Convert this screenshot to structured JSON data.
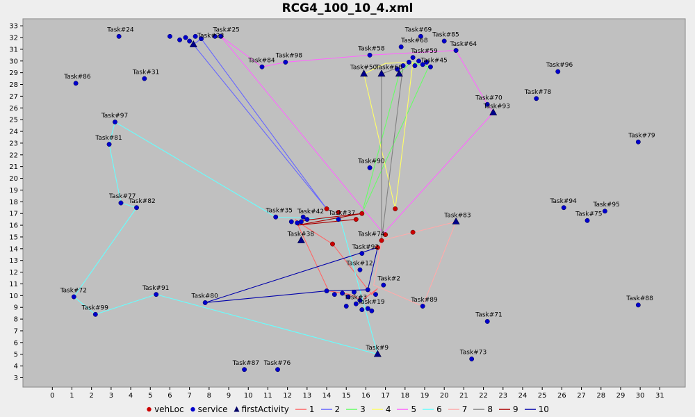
{
  "chart_data": {
    "type": "scatter",
    "title": "RCG4_100_10_4.xml",
    "xlabel": "",
    "ylabel": "",
    "xlim": [
      -1.5,
      32.3
    ],
    "ylim": [
      2.2,
      33.6
    ],
    "xticks": [
      0,
      1,
      2,
      3,
      4,
      5,
      6,
      7,
      8,
      9,
      10,
      11,
      12,
      13,
      14,
      15,
      16,
      17,
      18,
      19,
      20,
      21,
      22,
      23,
      24,
      25,
      26,
      27,
      28,
      29,
      30,
      31
    ],
    "yticks": [
      3,
      4,
      5,
      6,
      7,
      8,
      9,
      10,
      11,
      12,
      13,
      14,
      15,
      16,
      17,
      18,
      19,
      20,
      21,
      22,
      23,
      24,
      25,
      26,
      27,
      28,
      29,
      30,
      31,
      32,
      33
    ],
    "colors": {
      "plot_bg": "#c0c0c0",
      "marker_fill": "#0000cc",
      "vehloc_fill": "#cc0000",
      "r1": "#ff6666",
      "r2": "#6666ff",
      "r3": "#66ff66",
      "r4": "#ffff66",
      "r5": "#ff66ff",
      "r6": "#66ffff",
      "r7": "#ffaaaa",
      "r8": "#808080",
      "r9": "#aa0000",
      "r10": "#0000aa"
    },
    "legend": [
      {
        "label": "vehLoc",
        "kind": "dot",
        "color": "#cc0000"
      },
      {
        "label": "service",
        "kind": "dot",
        "color": "#0000cc"
      },
      {
        "label": "firstActivity",
        "kind": "tri",
        "color": "#000066"
      },
      {
        "label": "1",
        "kind": "line",
        "color": "#ff6666"
      },
      {
        "label": "2",
        "kind": "line",
        "color": "#6666ff"
      },
      {
        "label": "3",
        "kind": "line",
        "color": "#66ff66"
      },
      {
        "label": "4",
        "kind": "line",
        "color": "#ffff66"
      },
      {
        "label": "5",
        "kind": "line",
        "color": "#ff66ff"
      },
      {
        "label": "6",
        "kind": "line",
        "color": "#66ffff"
      },
      {
        "label": "7",
        "kind": "line",
        "color": "#ffaaaa"
      },
      {
        "label": "8",
        "kind": "line",
        "color": "#808080"
      },
      {
        "label": "9",
        "kind": "line",
        "color": "#aa0000"
      },
      {
        "label": "10",
        "kind": "line",
        "color": "#0000aa"
      }
    ],
    "service_points": [
      {
        "label": "Task#24",
        "x": 3.4,
        "y": 32.1
      },
      {
        "label": "Task#86",
        "x": 1.2,
        "y": 28.1
      },
      {
        "label": "Task#31",
        "x": 4.7,
        "y": 28.5
      },
      {
        "label": "Task#97",
        "x": 3.2,
        "y": 24.8
      },
      {
        "label": "Task#81",
        "x": 2.9,
        "y": 22.9
      },
      {
        "label": "Task#77",
        "x": 3.5,
        "y": 17.9
      },
      {
        "label": "Task#82",
        "x": 4.3,
        "y": 17.5
      },
      {
        "label": "Task#72",
        "x": 1.1,
        "y": 9.9
      },
      {
        "label": "Task#99",
        "x": 2.2,
        "y": 8.4
      },
      {
        "label": "Task#91",
        "x": 5.3,
        "y": 10.1
      },
      {
        "label": "Task#80",
        "x": 7.8,
        "y": 9.4
      },
      {
        "label": "Task#87",
        "x": 9.8,
        "y": 3.7
      },
      {
        "label": "Task#76",
        "x": 11.5,
        "y": 3.7
      },
      {
        "label": "Task#84",
        "x": 10.7,
        "y": 29.5
      },
      {
        "label": "Task#98",
        "x": 11.9,
        "y": 29.9
      },
      {
        "label": "Task#25",
        "x": 8.6,
        "y": 32.1
      },
      {
        "label": "Task#23",
        "x": 8.3,
        "y": 32.1
      },
      {
        "label": "",
        "x": 6.0,
        "y": 32.1
      },
      {
        "label": "",
        "x": 6.5,
        "y": 31.8
      },
      {
        "label": "",
        "x": 6.8,
        "y": 32.0
      },
      {
        "label": "",
        "x": 7.0,
        "y": 31.7
      },
      {
        "label": "",
        "x": 7.3,
        "y": 32.1
      },
      {
        "label": "",
        "x": 7.6,
        "y": 31.9
      },
      {
        "label": "Task#58",
        "x": 16.2,
        "y": 30.5
      },
      {
        "label": "Task#68",
        "x": 17.8,
        "y": 31.2
      },
      {
        "label": "Task#69",
        "x": 18.8,
        "y": 32.1
      },
      {
        "label": "Task#85",
        "x": 20.0,
        "y": 31.7
      },
      {
        "label": "Task#64",
        "x": 20.6,
        "y": 30.9
      },
      {
        "label": "Task#59",
        "x": 18.4,
        "y": 30.3
      },
      {
        "label": "Task#45",
        "x": 19.3,
        "y": 29.5
      },
      {
        "label": "",
        "x": 17.9,
        "y": 29.6
      },
      {
        "label": "",
        "x": 18.2,
        "y": 29.9
      },
      {
        "label": "",
        "x": 18.5,
        "y": 29.6
      },
      {
        "label": "",
        "x": 18.7,
        "y": 30.0
      },
      {
        "label": "",
        "x": 18.9,
        "y": 29.7
      },
      {
        "label": "",
        "x": 19.1,
        "y": 29.9
      },
      {
        "label": "",
        "x": 17.6,
        "y": 29.3
      },
      {
        "label": "Task#96",
        "x": 25.8,
        "y": 29.1
      },
      {
        "label": "Task#70",
        "x": 22.2,
        "y": 26.3
      },
      {
        "label": "Task#78",
        "x": 24.7,
        "y": 26.8
      },
      {
        "label": "Task#79",
        "x": 29.9,
        "y": 23.1
      },
      {
        "label": "Task#90",
        "x": 16.2,
        "y": 20.9
      },
      {
        "label": "Task#35",
        "x": 11.4,
        "y": 16.7
      },
      {
        "label": "Task#37",
        "x": 14.6,
        "y": 16.5
      },
      {
        "label": "Task#42",
        "x": 12.8,
        "y": 16.7
      },
      {
        "label": "",
        "x": 12.2,
        "y": 16.3
      },
      {
        "label": "",
        "x": 12.5,
        "y": 16.2
      },
      {
        "label": "",
        "x": 12.7,
        "y": 16.3
      },
      {
        "label": "",
        "x": 13.0,
        "y": 16.5
      },
      {
        "label": "Task#94",
        "x": 26.1,
        "y": 17.5
      },
      {
        "label": "Task#95",
        "x": 28.2,
        "y": 17.2
      },
      {
        "label": "Task#75",
        "x": 27.3,
        "y": 16.4
      },
      {
        "label": "Task#92",
        "x": 15.8,
        "y": 13.6
      },
      {
        "label": "Task#12",
        "x": 15.7,
        "y": 12.2
      },
      {
        "label": "Task#2",
        "x": 16.9,
        "y": 10.9
      },
      {
        "label": "Task#89",
        "x": 18.9,
        "y": 9.1
      },
      {
        "label": "Task#19",
        "x": 16.1,
        "y": 8.9
      },
      {
        "label": "Task#3",
        "x": 15.5,
        "y": 9.3
      },
      {
        "label": "",
        "x": 14.0,
        "y": 10.4
      },
      {
        "label": "",
        "x": 14.4,
        "y": 10.1
      },
      {
        "label": "",
        "x": 14.8,
        "y": 10.2
      },
      {
        "label": "",
        "x": 15.1,
        "y": 9.9
      },
      {
        "label": "",
        "x": 15.4,
        "y": 10.3
      },
      {
        "label": "",
        "x": 15.7,
        "y": 9.6
      },
      {
        "label": "",
        "x": 15.0,
        "y": 9.1
      },
      {
        "label": "",
        "x": 15.8,
        "y": 8.8
      },
      {
        "label": "",
        "x": 16.3,
        "y": 8.7
      },
      {
        "label": "",
        "x": 16.5,
        "y": 10.1
      },
      {
        "label": "",
        "x": 16.1,
        "y": 10.5
      },
      {
        "label": "Task#71",
        "x": 22.2,
        "y": 7.8
      },
      {
        "label": "Task#73",
        "x": 21.4,
        "y": 4.6
      },
      {
        "label": "Task#88",
        "x": 29.9,
        "y": 9.2
      }
    ],
    "first_activities": [
      {
        "label": "",
        "x": 7.2,
        "y": 31.4
      },
      {
        "label": "Task#50",
        "x": 15.9,
        "y": 28.9
      },
      {
        "label": "Task#60",
        "x": 16.8,
        "y": 28.9
      },
      {
        "label": "",
        "x": 17.7,
        "y": 28.9
      },
      {
        "label": "Task#93",
        "x": 22.5,
        "y": 25.6
      },
      {
        "label": "Task#83",
        "x": 20.6,
        "y": 16.3
      },
      {
        "label": "Task#38",
        "x": 12.7,
        "y": 14.7
      },
      {
        "label": "Task#9",
        "x": 16.6,
        "y": 5.0
      }
    ],
    "veh_locs": [
      {
        "x": 14.0,
        "y": 17.4
      },
      {
        "x": 14.6,
        "y": 17.1
      },
      {
        "x": 15.8,
        "y": 17.0
      },
      {
        "x": 15.5,
        "y": 16.5
      },
      {
        "x": 17.5,
        "y": 17.4
      },
      {
        "x": 17.0,
        "y": 15.2
      },
      {
        "x": 16.8,
        "y": 14.7
      },
      {
        "x": 16.6,
        "y": 14.1
      },
      {
        "x": 14.3,
        "y": 14.4
      },
      {
        "x": 18.4,
        "y": 15.4
      }
    ],
    "point_labels": [
      {
        "text": "Task#24",
        "x": 2.8,
        "y": 32.5
      },
      {
        "text": "Task#86",
        "x": 0.6,
        "y": 28.5
      },
      {
        "text": "Task#31",
        "x": 4.1,
        "y": 28.9
      },
      {
        "text": "Task#97",
        "x": 2.5,
        "y": 25.2
      },
      {
        "text": "Task#81",
        "x": 2.2,
        "y": 23.3
      },
      {
        "text": "Task#77",
        "x": 2.9,
        "y": 18.3
      },
      {
        "text": "Task#82",
        "x": 3.9,
        "y": 17.9
      },
      {
        "text": "Task#72",
        "x": 0.4,
        "y": 10.3
      },
      {
        "text": "Task#99",
        "x": 1.5,
        "y": 8.8
      },
      {
        "text": "Task#91",
        "x": 4.6,
        "y": 10.5
      },
      {
        "text": "Task#80",
        "x": 7.1,
        "y": 9.8
      },
      {
        "text": "Task#87",
        "x": 9.2,
        "y": 4.1
      },
      {
        "text": "Task#76",
        "x": 10.8,
        "y": 4.1
      },
      {
        "text": "Task#84",
        "x": 10.0,
        "y": 29.9
      },
      {
        "text": "Task#98",
        "x": 11.4,
        "y": 30.3
      },
      {
        "text": "Task#25",
        "x": 8.2,
        "y": 32.5
      },
      {
        "text": "Task#23",
        "x": 7.4,
        "y": 32.0
      },
      {
        "text": "Task#58",
        "x": 15.6,
        "y": 30.9
      },
      {
        "text": "Task#68",
        "x": 17.8,
        "y": 31.6
      },
      {
        "text": "Task#69",
        "x": 18.0,
        "y": 32.5
      },
      {
        "text": "Task#85",
        "x": 19.4,
        "y": 32.1
      },
      {
        "text": "Task#64",
        "x": 20.3,
        "y": 31.3
      },
      {
        "text": "Task#59",
        "x": 18.3,
        "y": 30.7
      },
      {
        "text": "Task#45",
        "x": 18.8,
        "y": 29.9
      },
      {
        "text": "Task#50",
        "x": 15.2,
        "y": 29.3
      },
      {
        "text": "Task#60",
        "x": 16.5,
        "y": 29.3
      },
      {
        "text": "Task#96",
        "x": 25.2,
        "y": 29.5
      },
      {
        "text": "Task#70",
        "x": 21.6,
        "y": 26.7
      },
      {
        "text": "Task#78",
        "x": 24.1,
        "y": 27.2
      },
      {
        "text": "Task#93",
        "x": 22.0,
        "y": 26.0
      },
      {
        "text": "Task#79",
        "x": 29.4,
        "y": 23.5
      },
      {
        "text": "Task#90",
        "x": 15.6,
        "y": 21.3
      },
      {
        "text": "Task#35",
        "x": 10.9,
        "y": 17.1
      },
      {
        "text": "Task#42",
        "x": 12.5,
        "y": 17.0
      },
      {
        "text": "Task#37",
        "x": 14.1,
        "y": 16.9
      },
      {
        "text": "Task#94",
        "x": 25.4,
        "y": 17.9
      },
      {
        "text": "Task#95",
        "x": 27.6,
        "y": 17.6
      },
      {
        "text": "Task#75",
        "x": 26.7,
        "y": 16.8
      },
      {
        "text": "Task#83",
        "x": 20.0,
        "y": 16.7
      },
      {
        "text": "Task#38",
        "x": 12.0,
        "y": 15.1
      },
      {
        "text": "Task#74",
        "x": 15.6,
        "y": 15.1
      },
      {
        "text": "Task#92",
        "x": 15.3,
        "y": 14.0
      },
      {
        "text": "Task#12",
        "x": 15.0,
        "y": 12.6
      },
      {
        "text": "Task#2",
        "x": 16.6,
        "y": 11.3
      },
      {
        "text": "Task#89",
        "x": 18.3,
        "y": 9.5
      },
      {
        "text": "Task#19",
        "x": 15.6,
        "y": 9.3
      },
      {
        "text": "Task#3",
        "x": 14.9,
        "y": 9.7
      },
      {
        "text": "Task#71",
        "x": 21.6,
        "y": 8.2
      },
      {
        "text": "Task#73",
        "x": 20.8,
        "y": 5.0
      },
      {
        "text": "Task#88",
        "x": 29.3,
        "y": 9.6
      },
      {
        "text": "Task#9",
        "x": 16.0,
        "y": 5.4
      }
    ],
    "routes": [
      {
        "name": "1",
        "color": "#ff6666",
        "points": [
          [
            14.3,
            14.4
          ],
          [
            12.7,
            16.1
          ],
          [
            12.4,
            16.5
          ],
          [
            14.1,
            10.4
          ],
          [
            15.2,
            10.1
          ],
          [
            15.8,
            9.6
          ],
          [
            16.6,
            10.6
          ],
          [
            16.3,
            10.1
          ],
          [
            14.3,
            14.4
          ]
        ]
      },
      {
        "name": "2",
        "color": "#6666ff",
        "points": [
          [
            14.0,
            17.4
          ],
          [
            7.6,
            31.9
          ],
          [
            7.2,
            31.4
          ],
          [
            14.0,
            17.4
          ]
        ]
      },
      {
        "name": "3",
        "color": "#66ff66",
        "points": [
          [
            15.8,
            17.0
          ],
          [
            17.7,
            28.9
          ],
          [
            18.3,
            29.9
          ],
          [
            19.2,
            29.5
          ],
          [
            15.8,
            17.0
          ]
        ]
      },
      {
        "name": "4",
        "color": "#ffff66",
        "points": [
          [
            17.5,
            17.4
          ],
          [
            15.9,
            28.9
          ],
          [
            17.0,
            29.8
          ],
          [
            18.4,
            29.9
          ],
          [
            17.5,
            17.4
          ]
        ]
      },
      {
        "name": "5",
        "color": "#ff66ff",
        "points": [
          [
            16.9,
            15.3
          ],
          [
            22.5,
            25.6
          ],
          [
            22.2,
            26.3
          ],
          [
            20.6,
            30.9
          ],
          [
            16.2,
            30.5
          ],
          [
            11.9,
            29.9
          ],
          [
            10.7,
            29.5
          ],
          [
            8.6,
            32.1
          ],
          [
            16.9,
            15.3
          ]
        ]
      },
      {
        "name": "6",
        "color": "#66ffff",
        "points": [
          [
            14.6,
            17.1
          ],
          [
            16.6,
            5.0
          ],
          [
            5.3,
            10.1
          ],
          [
            2.2,
            8.4
          ],
          [
            1.1,
            9.9
          ],
          [
            4.3,
            17.5
          ],
          [
            3.5,
            17.9
          ],
          [
            2.9,
            22.9
          ],
          [
            3.2,
            24.8
          ],
          [
            11.4,
            16.7
          ],
          [
            14.6,
            16.5
          ]
        ]
      },
      {
        "name": "7",
        "color": "#ffaaaa",
        "points": [
          [
            16.8,
            14.7
          ],
          [
            20.6,
            16.3
          ],
          [
            18.9,
            9.1
          ],
          [
            16.4,
            10.9
          ],
          [
            16.8,
            14.7
          ]
        ]
      },
      {
        "name": "8",
        "color": "#808080",
        "points": [
          [
            16.8,
            14.7
          ],
          [
            16.8,
            28.9
          ],
          [
            17.9,
            29.6
          ],
          [
            16.8,
            14.7
          ]
        ]
      },
      {
        "name": "9",
        "color": "#aa0000",
        "points": [
          [
            15.5,
            16.5
          ],
          [
            12.5,
            16.0
          ],
          [
            15.8,
            17.0
          ],
          [
            12.8,
            16.4
          ]
        ]
      },
      {
        "name": "10",
        "color": "#0000aa",
        "points": [
          [
            16.6,
            14.1
          ],
          [
            7.8,
            9.4
          ],
          [
            14.0,
            10.4
          ],
          [
            16.1,
            10.5
          ],
          [
            16.6,
            14.1
          ]
        ]
      }
    ]
  }
}
